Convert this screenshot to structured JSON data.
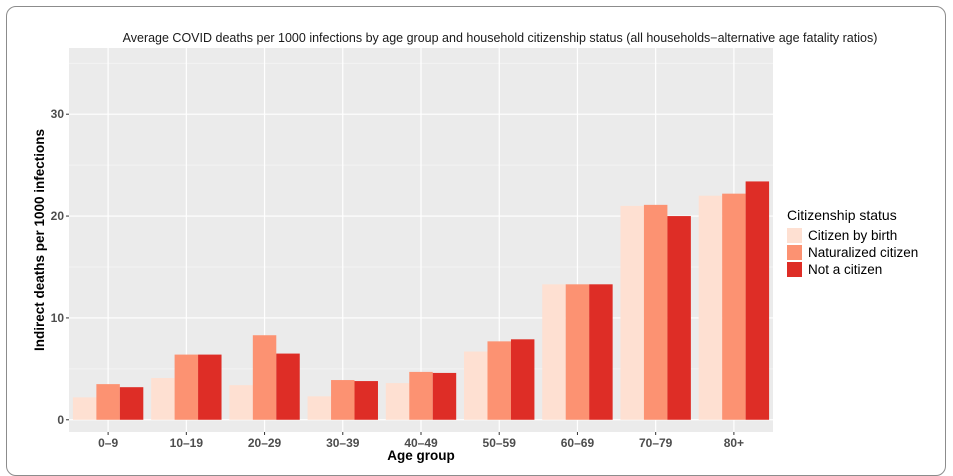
{
  "chart_data": {
    "type": "bar",
    "title": "Average COVID deaths per 1000 infections by age group and household citizenship status (all households−alternative age fatality ratios)",
    "xlabel": "Age group",
    "ylabel": "Indirect deaths per 1000 infections",
    "categories": [
      "0–9",
      "10–19",
      "20–29",
      "30–39",
      "40–49",
      "50–59",
      "60–69",
      "70–79",
      "80+"
    ],
    "series": [
      {
        "name": "Citizen by birth",
        "color": "#fee0d2",
        "values": [
          2.2,
          4.1,
          3.4,
          2.3,
          3.6,
          6.7,
          13.3,
          21.0,
          22.0
        ]
      },
      {
        "name": "Naturalized citizen",
        "color": "#fc9272",
        "values": [
          3.5,
          6.4,
          8.3,
          3.9,
          4.7,
          7.7,
          13.3,
          21.1,
          22.2
        ]
      },
      {
        "name": "Not a citizen",
        "color": "#de2d26",
        "values": [
          3.2,
          6.4,
          6.5,
          3.8,
          4.6,
          7.9,
          13.3,
          20.0,
          23.4
        ]
      }
    ],
    "ylim": [
      -1.2,
      36.5
    ],
    "yticks": [
      0,
      10,
      20,
      30
    ],
    "grid": true,
    "legend": {
      "title": "Citizenship status",
      "position": "right"
    }
  }
}
